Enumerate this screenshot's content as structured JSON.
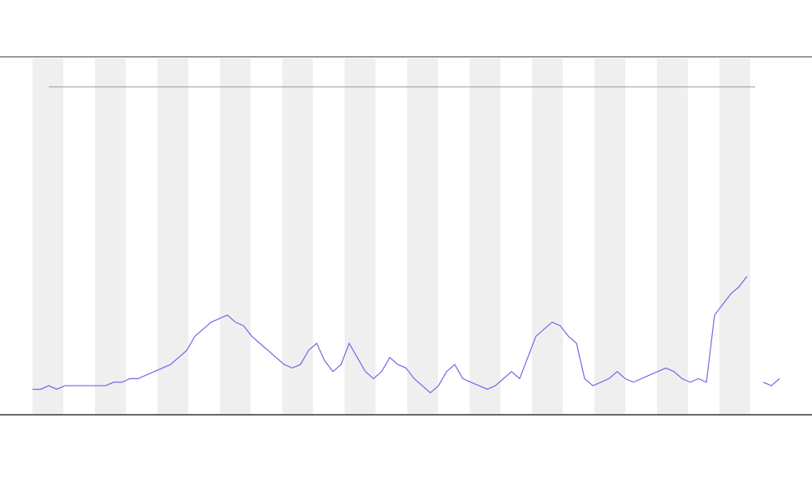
{
  "chart_data": {
    "type": "line",
    "x": [
      0,
      1,
      2,
      3,
      4,
      5,
      6,
      7,
      8,
      9,
      10,
      11,
      12,
      13,
      14,
      15,
      16,
      17,
      18,
      19,
      20,
      21,
      22,
      23,
      24,
      25,
      26,
      27,
      28,
      29,
      30,
      31,
      32,
      33,
      34,
      35,
      36,
      37,
      38,
      39,
      40,
      41,
      42,
      43,
      44,
      45,
      46,
      47,
      48,
      49,
      50,
      51,
      52,
      53,
      54,
      55,
      56,
      57,
      58,
      59,
      60,
      61,
      62,
      63,
      64,
      65,
      66,
      67,
      68,
      69,
      70,
      71,
      72,
      73,
      74,
      75,
      76,
      77,
      78,
      79,
      80,
      81,
      82,
      83,
      84,
      85,
      86,
      87,
      88,
      89,
      90,
      91,
      92
    ],
    "series": [
      {
        "color": "#6a6ae8",
        "values": [
          7,
          7,
          8,
          7,
          8,
          8,
          8,
          8,
          8,
          8,
          9,
          9,
          10,
          10,
          11,
          12,
          13,
          14,
          16,
          18,
          22,
          24,
          26,
          27,
          28,
          26,
          25,
          22,
          20,
          18,
          16,
          14,
          13,
          14,
          18,
          20,
          15,
          12,
          14,
          20,
          16,
          12,
          10,
          12,
          16,
          14,
          13,
          10,
          8,
          6,
          8,
          12,
          14,
          10,
          9,
          8,
          7,
          8,
          10,
          12,
          10,
          16,
          22,
          24,
          26,
          25,
          22,
          20,
          10,
          8,
          9,
          10,
          12,
          10,
          9,
          10,
          11,
          12,
          13,
          12,
          10,
          9,
          10,
          9,
          28,
          31,
          34,
          36,
          39,
          null,
          9,
          8,
          10
        ]
      }
    ],
    "xlim": [
      0,
      92
    ],
    "ylim": [
      0,
      100
    ]
  }
}
